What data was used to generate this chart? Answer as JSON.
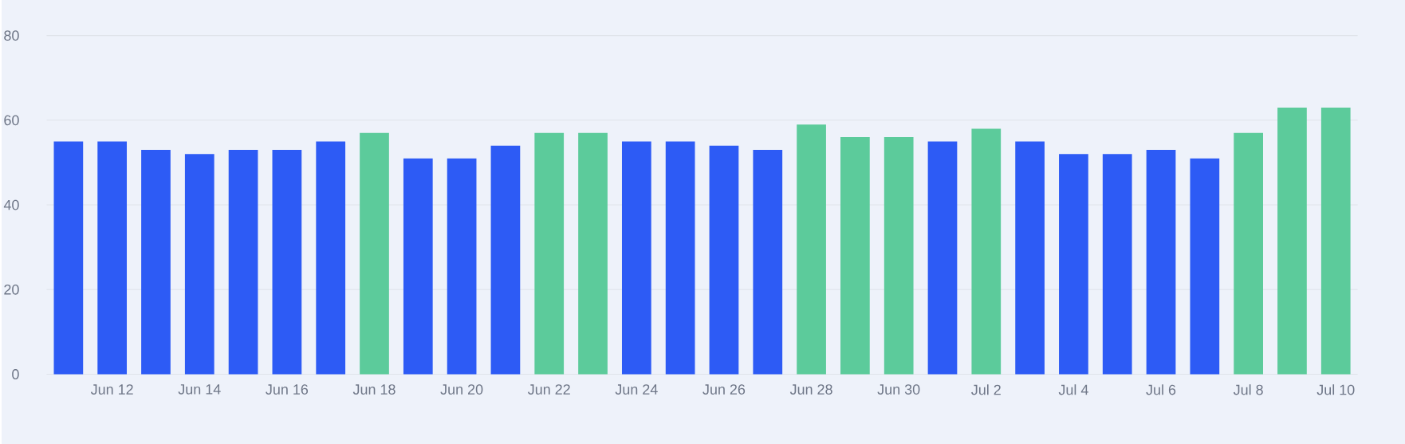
{
  "chart_data": {
    "type": "bar",
    "categories": [
      null,
      "Jun 12",
      null,
      "Jun 14",
      null,
      "Jun 16",
      null,
      "Jun 18",
      null,
      "Jun 20",
      null,
      "Jun 22",
      null,
      "Jun 24",
      null,
      "Jun 26",
      null,
      "Jun 28",
      null,
      "Jun 30",
      null,
      "Jul 2",
      null,
      "Jul 4",
      null,
      "Jul 6",
      null,
      "Jul 8",
      null,
      "Jul 10"
    ],
    "values": [
      55,
      55,
      53,
      52,
      53,
      53,
      55,
      57,
      51,
      51,
      54,
      57,
      57,
      55,
      55,
      54,
      53,
      59,
      56,
      56,
      55,
      58,
      55,
      52,
      52,
      53,
      51,
      57,
      63,
      63
    ],
    "colors": [
      "#2d5bf5",
      "#2d5bf5",
      "#2d5bf5",
      "#2d5bf5",
      "#2d5bf5",
      "#2d5bf5",
      "#2d5bf5",
      "#5ccb9b",
      "#2d5bf5",
      "#2d5bf5",
      "#2d5bf5",
      "#5ccb9b",
      "#5ccb9b",
      "#2d5bf5",
      "#2d5bf5",
      "#2d5bf5",
      "#2d5bf5",
      "#5ccb9b",
      "#5ccb9b",
      "#5ccb9b",
      "#2d5bf5",
      "#5ccb9b",
      "#2d5bf5",
      "#2d5bf5",
      "#2d5bf5",
      "#2d5bf5",
      "#2d5bf5",
      "#5ccb9b",
      "#5ccb9b",
      "#5ccb9b"
    ],
    "ylim": [
      0,
      80
    ],
    "yticks": [
      0,
      20,
      40,
      60,
      80
    ],
    "grid": "y"
  }
}
